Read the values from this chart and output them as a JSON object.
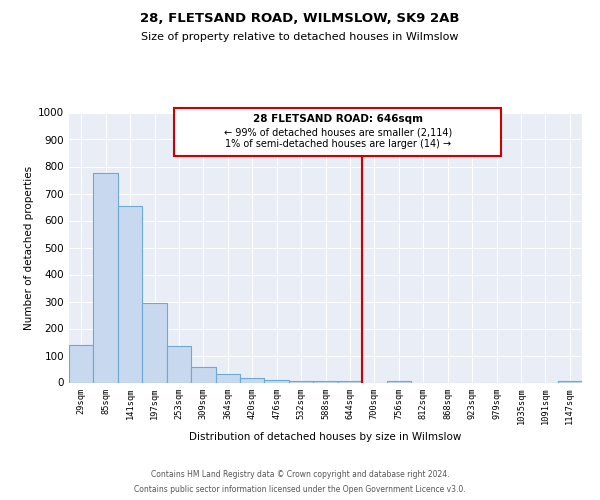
{
  "title": "28, FLETSAND ROAD, WILMSLOW, SK9 2AB",
  "subtitle": "Size of property relative to detached houses in Wilmslow",
  "xlabel": "Distribution of detached houses by size in Wilmslow",
  "ylabel": "Number of detached properties",
  "bin_labels": [
    "29sqm",
    "85sqm",
    "141sqm",
    "197sqm",
    "253sqm",
    "309sqm",
    "364sqm",
    "420sqm",
    "476sqm",
    "532sqm",
    "588sqm",
    "644sqm",
    "700sqm",
    "756sqm",
    "812sqm",
    "868sqm",
    "923sqm",
    "979sqm",
    "1035sqm",
    "1091sqm",
    "1147sqm"
  ],
  "bar_heights": [
    140,
    775,
    655,
    295,
    135,
    57,
    30,
    15,
    10,
    5,
    5,
    5,
    0,
    5,
    0,
    0,
    0,
    0,
    0,
    0,
    5
  ],
  "bar_color": "#c8d9ef",
  "bar_edge_color": "#6aaad4",
  "vline_x": 11.5,
  "vline_color": "#cc0000",
  "ylim": [
    0,
    1000
  ],
  "yticks": [
    0,
    100,
    200,
    300,
    400,
    500,
    600,
    700,
    800,
    900,
    1000
  ],
  "annotation_title": "28 FLETSAND ROAD: 646sqm",
  "annotation_line1": "← 99% of detached houses are smaller (2,114)",
  "annotation_line2": "1% of semi-detached houses are larger (14) →",
  "annotation_box_color": "#ffffff",
  "annotation_box_edge": "#cc0000",
  "footer_line1": "Contains HM Land Registry data © Crown copyright and database right 2024.",
  "footer_line2": "Contains public sector information licensed under the Open Government Licence v3.0.",
  "background_color": "#e8edf6",
  "grid_color": "#ffffff",
  "fig_background": "#ffffff"
}
